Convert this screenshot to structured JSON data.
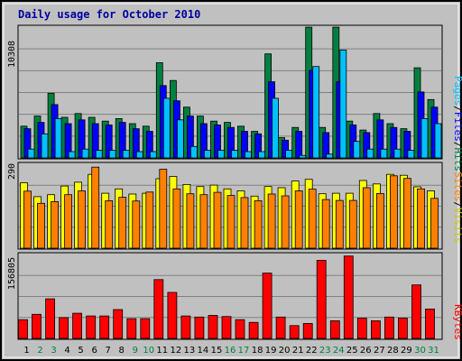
{
  "title": "Daily usage for October 2010",
  "colors": {
    "background": "#c0c0c0",
    "grid": "#808080",
    "title": "#0000a0",
    "hits": "#008040",
    "files": "#0000ff",
    "pages": "#00c0ff",
    "visits": "#ffff00",
    "sites": "#ff8000",
    "kbytes": "#ff0000",
    "weekend_day": "#008040",
    "weekday": "#000000"
  },
  "chart_data": [
    {
      "type": "bar",
      "name": "hits-files-pages",
      "y_axis_max_label": "10308",
      "ylim": [
        0,
        10308
      ],
      "legend": [
        "Pages",
        "/",
        "Files",
        "/",
        "Hits"
      ],
      "categories": [
        "1",
        "2",
        "3",
        "4",
        "5",
        "6",
        "7",
        "8",
        "9",
        "10",
        "11",
        "12",
        "13",
        "14",
        "15",
        "16",
        "17",
        "18",
        "19",
        "20",
        "21",
        "22",
        "23",
        "24",
        "25",
        "26",
        "27",
        "28",
        "29",
        "30",
        "31"
      ],
      "series": [
        {
          "name": "Hits",
          "values": [
            2500,
            3300,
            5100,
            3200,
            3500,
            3200,
            2900,
            3100,
            2700,
            2500,
            7500,
            6100,
            4000,
            3300,
            2900,
            2800,
            2500,
            2100,
            8200,
            1600,
            2400,
            10300,
            2400,
            10300,
            2900,
            2200,
            3500,
            2700,
            2300,
            7100,
            4600
          ]
        },
        {
          "name": "Files",
          "values": [
            2300,
            2800,
            4200,
            2700,
            3000,
            2700,
            2600,
            2800,
            2300,
            2100,
            5700,
            4500,
            3300,
            2700,
            2600,
            2400,
            2100,
            1900,
            6000,
            1400,
            2100,
            6900,
            2000,
            6000,
            2600,
            2000,
            3000,
            2400,
            2100,
            5200,
            4000
          ]
        },
        {
          "name": "Pages",
          "values": [
            700,
            1900,
            3100,
            500,
            700,
            600,
            600,
            600,
            500,
            500,
            4700,
            3000,
            900,
            600,
            600,
            600,
            500,
            500,
            4700,
            600,
            200,
            7200,
            300,
            8500,
            1300,
            700,
            700,
            700,
            600,
            3100,
            2700
          ]
        }
      ]
    },
    {
      "type": "bar",
      "name": "visits-sites",
      "y_axis_max_label": "290",
      "ylim": [
        0,
        290
      ],
      "legend": [
        "Sites",
        "/",
        "Visits"
      ],
      "categories": [
        "1",
        "2",
        "3",
        "4",
        "5",
        "6",
        "7",
        "8",
        "9",
        "10",
        "11",
        "12",
        "13",
        "14",
        "15",
        "16",
        "17",
        "18",
        "19",
        "20",
        "21",
        "22",
        "23",
        "24",
        "25",
        "26",
        "27",
        "28",
        "29",
        "30",
        "31"
      ],
      "series": [
        {
          "name": "Visits",
          "values": [
            226,
            178,
            185,
            215,
            228,
            255,
            190,
            205,
            187,
            190,
            240,
            248,
            220,
            213,
            218,
            205,
            198,
            180,
            213,
            209,
            232,
            238,
            188,
            190,
            190,
            234,
            222,
            255,
            252,
            212,
            198
          ]
        },
        {
          "name": "Sites",
          "values": [
            197,
            155,
            161,
            185,
            198,
            280,
            164,
            176,
            163,
            194,
            273,
            205,
            188,
            185,
            193,
            182,
            175,
            164,
            187,
            181,
            198,
            204,
            168,
            165,
            165,
            209,
            189,
            250,
            241,
            205,
            172
          ]
        }
      ]
    },
    {
      "type": "bar",
      "name": "kbytes",
      "y_axis_max_label": "156805",
      "ylim": [
        0,
        156805
      ],
      "legend": [
        "KBytes"
      ],
      "categories": [
        "1",
        "2",
        "3",
        "4",
        "5",
        "6",
        "7",
        "8",
        "9",
        "10",
        "11",
        "12",
        "13",
        "14",
        "15",
        "16",
        "17",
        "18",
        "19",
        "20",
        "21",
        "22",
        "23",
        "24",
        "25",
        "26",
        "27",
        "28",
        "29",
        "30",
        "31"
      ],
      "series": [
        {
          "name": "KBytes",
          "values": [
            35000,
            45000,
            74000,
            39000,
            47000,
            42000,
            42000,
            54000,
            37000,
            37000,
            110000,
            86000,
            42000,
            40000,
            43000,
            41000,
            35000,
            30000,
            122000,
            40000,
            24000,
            28000,
            146000,
            33000,
            154000,
            38000,
            33000,
            40000,
            38000,
            100000,
            55000
          ]
        }
      ]
    }
  ],
  "x_labels": [
    "1",
    "2",
    "3",
    "4",
    "5",
    "6",
    "7",
    "8",
    "9",
    "10",
    "11",
    "12",
    "13",
    "14",
    "15",
    "16",
    "17",
    "18",
    "19",
    "20",
    "21",
    "22",
    "23",
    "24",
    "25",
    "26",
    "27",
    "28",
    "29",
    "30",
    "31"
  ],
  "weekend_days": [
    "2",
    "3",
    "9",
    "10",
    "16",
    "17",
    "23",
    "24",
    "30",
    "31"
  ]
}
